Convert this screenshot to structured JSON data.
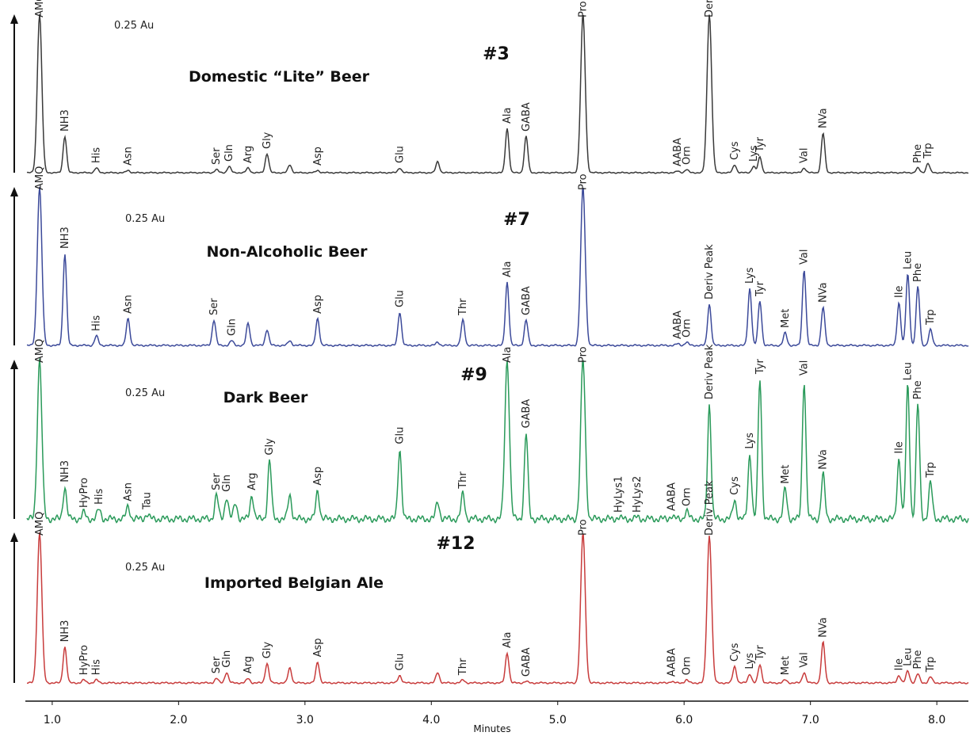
{
  "chart_data": {
    "type": "line",
    "xlabel": "Minutes",
    "xlim": [
      0.8,
      8.25
    ],
    "x_ticks": [
      "1.0",
      "2.0",
      "3.0",
      "4.0",
      "5.0",
      "6.0",
      "7.0",
      "8.0"
    ],
    "series": [
      {
        "name": "Domestic “Lite” Beer",
        "number": "#3",
        "scale": "0.25 Au",
        "color": "#3a3a3a",
        "baseline_noise": 0.2,
        "peaks": [
          {
            "label": "AMQ",
            "t": 0.9,
            "h": 100
          },
          {
            "label": "NH3",
            "t": 1.1,
            "h": 23
          },
          {
            "label": "His",
            "t": 1.35,
            "h": 3
          },
          {
            "label": "Asn",
            "t": 1.6,
            "h": 1.5
          },
          {
            "label": "Ser",
            "t": 2.3,
            "h": 2
          },
          {
            "label": "Gln",
            "t": 2.4,
            "h": 4
          },
          {
            "label": "Arg",
            "t": 2.55,
            "h": 3
          },
          {
            "label": "Gly",
            "t": 2.7,
            "h": 12
          },
          {
            "label": "",
            "t": 2.88,
            "h": 5
          },
          {
            "label": "Asp",
            "t": 3.1,
            "h": 1.5
          },
          {
            "label": "Glu",
            "t": 3.75,
            "h": 3
          },
          {
            "label": "",
            "t": 4.05,
            "h": 7
          },
          {
            "label": "Ala",
            "t": 4.6,
            "h": 28
          },
          {
            "label": "GABA",
            "t": 4.75,
            "h": 23
          },
          {
            "label": "Pro",
            "t": 5.2,
            "h": 100
          },
          {
            "label": "AABA",
            "t": 5.95,
            "h": 1
          },
          {
            "label": "Orn",
            "t": 6.02,
            "h": 2
          },
          {
            "label": "Deriv Peak",
            "t": 6.2,
            "h": 100
          },
          {
            "label": "Cys",
            "t": 6.4,
            "h": 5
          },
          {
            "label": "Lys",
            "t": 6.55,
            "h": 4
          },
          {
            "label": "Tyr",
            "t": 6.6,
            "h": 10
          },
          {
            "label": "Val",
            "t": 6.95,
            "h": 3
          },
          {
            "label": "NVa",
            "t": 7.1,
            "h": 25
          },
          {
            "label": "Phe",
            "t": 7.85,
            "h": 3
          },
          {
            "label": "Trp",
            "t": 7.93,
            "h": 6
          }
        ]
      },
      {
        "name": "Non-Alcoholic Beer",
        "number": "#7",
        "scale": "0.25 Au",
        "color": "#3c4a9a",
        "baseline_noise": 0.3,
        "peaks": [
          {
            "label": "AMQ",
            "t": 0.9,
            "h": 100
          },
          {
            "label": "NH3",
            "t": 1.1,
            "h": 58
          },
          {
            "label": "His",
            "t": 1.35,
            "h": 6
          },
          {
            "label": "Asn",
            "t": 1.6,
            "h": 17
          },
          {
            "label": "Ser",
            "t": 2.28,
            "h": 16
          },
          {
            "label": "Gln",
            "t": 2.42,
            "h": 3
          },
          {
            "label": "",
            "t": 2.55,
            "h": 14
          },
          {
            "label": "",
            "t": 2.7,
            "h": 10
          },
          {
            "label": "",
            "t": 2.88,
            "h": 3
          },
          {
            "label": "Asp",
            "t": 3.1,
            "h": 17
          },
          {
            "label": "Glu",
            "t": 3.75,
            "h": 21
          },
          {
            "label": "",
            "t": 4.05,
            "h": 2
          },
          {
            "label": "Thr",
            "t": 4.25,
            "h": 16
          },
          {
            "label": "Ala",
            "t": 4.6,
            "h": 40
          },
          {
            "label": "GABA",
            "t": 4.75,
            "h": 16
          },
          {
            "label": "Pro",
            "t": 5.2,
            "h": 100
          },
          {
            "label": "AABA",
            "t": 5.95,
            "h": 1
          },
          {
            "label": "Orn",
            "t": 6.02,
            "h": 2
          },
          {
            "label": "Deriv Peak",
            "t": 6.2,
            "h": 26
          },
          {
            "label": "Lys",
            "t": 6.52,
            "h": 36
          },
          {
            "label": "Tyr",
            "t": 6.6,
            "h": 28
          },
          {
            "label": "Met",
            "t": 6.8,
            "h": 8
          },
          {
            "label": "Val",
            "t": 6.95,
            "h": 48
          },
          {
            "label": "NVa",
            "t": 7.1,
            "h": 24
          },
          {
            "label": "Ile",
            "t": 7.7,
            "h": 27
          },
          {
            "label": "Leu",
            "t": 7.77,
            "h": 45
          },
          {
            "label": "Phe",
            "t": 7.85,
            "h": 37
          },
          {
            "label": "Trp",
            "t": 7.95,
            "h": 10
          }
        ]
      },
      {
        "name": "Dark Beer",
        "number": "#9",
        "scale": "0.25 Au",
        "color": "#2a9a5a",
        "baseline_noise": 1.2,
        "peaks": [
          {
            "label": "AMQ",
            "t": 0.9,
            "h": 100
          },
          {
            "label": "NH3",
            "t": 1.1,
            "h": 20
          },
          {
            "label": "HyPro",
            "t": 1.25,
            "h": 4
          },
          {
            "label": "His",
            "t": 1.37,
            "h": 6
          },
          {
            "label": "Asn",
            "t": 1.6,
            "h": 8
          },
          {
            "label": "Tau",
            "t": 1.75,
            "h": 3
          },
          {
            "label": "Ser",
            "t": 2.3,
            "h": 15
          },
          {
            "label": "Gln",
            "t": 2.38,
            "h": 14
          },
          {
            "label": "",
            "t": 2.45,
            "h": 10
          },
          {
            "label": "Arg",
            "t": 2.58,
            "h": 15
          },
          {
            "label": "Gly",
            "t": 2.72,
            "h": 37
          },
          {
            "label": "",
            "t": 2.88,
            "h": 15
          },
          {
            "label": "Asp",
            "t": 3.1,
            "h": 18
          },
          {
            "label": "Glu",
            "t": 3.75,
            "h": 44
          },
          {
            "label": "",
            "t": 4.05,
            "h": 11
          },
          {
            "label": "Thr",
            "t": 4.25,
            "h": 16
          },
          {
            "label": "Ala",
            "t": 4.6,
            "h": 100
          },
          {
            "label": "GABA",
            "t": 4.75,
            "h": 54
          },
          {
            "label": "Pro",
            "t": 5.2,
            "h": 100
          },
          {
            "label": "HyLys1",
            "t": 5.48,
            "h": 1
          },
          {
            "label": "HyLys2",
            "t": 5.63,
            "h": 1
          },
          {
            "label": "AABA",
            "t": 5.9,
            "h": 2
          },
          {
            "label": "Orn",
            "t": 6.02,
            "h": 5
          },
          {
            "label": "Deriv Peak",
            "t": 6.2,
            "h": 72
          },
          {
            "label": "Cys",
            "t": 6.4,
            "h": 12
          },
          {
            "label": "Lys",
            "t": 6.52,
            "h": 41
          },
          {
            "label": "Tyr",
            "t": 6.6,
            "h": 88
          },
          {
            "label": "Met",
            "t": 6.8,
            "h": 19
          },
          {
            "label": "Val",
            "t": 6.95,
            "h": 87
          },
          {
            "label": "NVa",
            "t": 7.1,
            "h": 28
          },
          {
            "label": "Ile",
            "t": 7.7,
            "h": 38
          },
          {
            "label": "Leu",
            "t": 7.77,
            "h": 84
          },
          {
            "label": "Phe",
            "t": 7.85,
            "h": 72
          },
          {
            "label": "Trp",
            "t": 7.95,
            "h": 23
          }
        ]
      },
      {
        "name": "Imported Belgian Ale",
        "number": "#12",
        "scale": "0.25 Au",
        "color": "#c83c3c",
        "baseline_noise": 0.3,
        "peaks": [
          {
            "label": "AMQ",
            "t": 0.9,
            "h": 100
          },
          {
            "label": "NH3",
            "t": 1.1,
            "h": 24
          },
          {
            "label": "HyPro",
            "t": 1.25,
            "h": 2
          },
          {
            "label": "His",
            "t": 1.35,
            "h": 2
          },
          {
            "label": "Ser",
            "t": 2.3,
            "h": 3
          },
          {
            "label": "Gln",
            "t": 2.38,
            "h": 7
          },
          {
            "label": "Arg",
            "t": 2.55,
            "h": 3
          },
          {
            "label": "Gly",
            "t": 2.7,
            "h": 13
          },
          {
            "label": "",
            "t": 2.88,
            "h": 10
          },
          {
            "label": "Asp",
            "t": 3.1,
            "h": 14
          },
          {
            "label": "Glu",
            "t": 3.75,
            "h": 5
          },
          {
            "label": "",
            "t": 4.05,
            "h": 7
          },
          {
            "label": "Thr",
            "t": 4.25,
            "h": 2
          },
          {
            "label": "Ala",
            "t": 4.6,
            "h": 20
          },
          {
            "label": "GABA",
            "t": 4.75,
            "h": 1
          },
          {
            "label": "Pro",
            "t": 5.2,
            "h": 100
          },
          {
            "label": "AABA",
            "t": 5.9,
            "h": 1
          },
          {
            "label": "Orn",
            "t": 6.02,
            "h": 2
          },
          {
            "label": "Deriv Peak",
            "t": 6.2,
            "h": 98
          },
          {
            "label": "Cys",
            "t": 6.4,
            "h": 11
          },
          {
            "label": "Lys",
            "t": 6.52,
            "h": 6
          },
          {
            "label": "Tyr",
            "t": 6.6,
            "h": 12
          },
          {
            "label": "Met",
            "t": 6.8,
            "h": 2
          },
          {
            "label": "Val",
            "t": 6.95,
            "h": 7
          },
          {
            "label": "NVa",
            "t": 7.1,
            "h": 27
          },
          {
            "label": "Ile",
            "t": 7.7,
            "h": 5
          },
          {
            "label": "Leu",
            "t": 7.77,
            "h": 8
          },
          {
            "label": "Phe",
            "t": 7.85,
            "h": 6
          },
          {
            "label": "Trp",
            "t": 7.95,
            "h": 4
          }
        ]
      }
    ]
  }
}
